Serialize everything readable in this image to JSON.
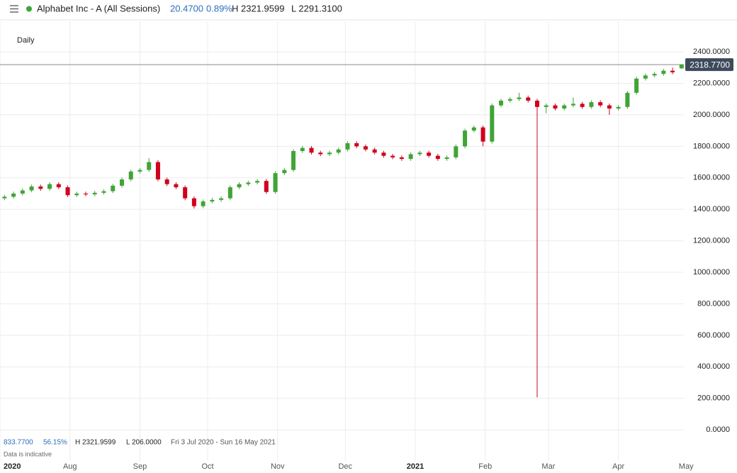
{
  "header": {
    "title": "Alphabet Inc - A (All Sessions)",
    "change": "20.4700",
    "change_pct": "0.89%",
    "high": "H 2321.9599",
    "low": "L 2291.3100",
    "interval": "Daily"
  },
  "footer": {
    "range_change": "833.7700",
    "range_pct": "56.15%",
    "range_high": "H 2321.9599",
    "range_low": "L 206.0000",
    "dates": "Fri 3 Jul 2020 - Sun 16 May 2021",
    "note": "Data is indicative"
  },
  "chart_data": {
    "type": "candlestick",
    "up_color": "#3fa535",
    "down_color": "#d0021b",
    "grid": true,
    "xlim": [
      0,
      303
    ],
    "ylim": [
      -40,
      2594
    ],
    "xticks": [
      {
        "value": 0,
        "label": "2020"
      },
      {
        "value": 31,
        "label": "Aug"
      },
      {
        "value": 62,
        "label": "Sep"
      },
      {
        "value": 92,
        "label": "Oct"
      },
      {
        "value": 123,
        "label": "Nov"
      },
      {
        "value": 153,
        "label": "Dec"
      },
      {
        "value": 184,
        "label": "2021"
      },
      {
        "value": 215,
        "label": "Feb"
      },
      {
        "value": 243,
        "label": "Mar"
      },
      {
        "value": 274,
        "label": "Apr"
      },
      {
        "value": 304,
        "label": "May"
      }
    ],
    "yticks": [
      {
        "value": 0,
        "label": "0.0000"
      },
      {
        "value": 200,
        "label": "200.0000"
      },
      {
        "value": 400,
        "label": "400.0000"
      },
      {
        "value": 600,
        "label": "600.0000"
      },
      {
        "value": 800,
        "label": "800.0000"
      },
      {
        "value": 1000,
        "label": "1000.0000"
      },
      {
        "value": 1200,
        "label": "1200.0000"
      },
      {
        "value": 1400,
        "label": "1400.0000"
      },
      {
        "value": 1600,
        "label": "1600.0000"
      },
      {
        "value": 1800,
        "label": "1800.0000"
      },
      {
        "value": 2000,
        "label": "2000.0000"
      },
      {
        "value": 2200,
        "label": "2200.0000"
      },
      {
        "value": 2400,
        "label": "2400.0000"
      }
    ],
    "last_price": {
      "value": 2318.77,
      "label": "2318.7700"
    },
    "x": [
      2,
      6,
      10,
      14,
      18,
      22,
      26,
      30,
      34,
      38,
      42,
      46,
      50,
      54,
      58,
      62,
      66,
      70,
      74,
      78,
      82,
      86,
      90,
      94,
      98,
      102,
      106,
      110,
      114,
      118,
      122,
      126,
      130,
      134,
      138,
      142,
      146,
      150,
      154,
      158,
      162,
      166,
      170,
      174,
      178,
      182,
      186,
      190,
      194,
      198,
      202,
      206,
      210,
      214,
      218,
      222,
      226,
      230,
      234,
      238,
      242,
      246,
      250,
      254,
      258,
      262,
      266,
      270,
      274,
      278,
      282,
      286,
      290,
      294,
      298,
      302
    ],
    "open": [
      1470,
      1480,
      1500,
      1520,
      1545,
      1530,
      1560,
      1540,
      1490,
      1500,
      1495,
      1505,
      1515,
      1550,
      1590,
      1640,
      1650,
      1700,
      1590,
      1560,
      1540,
      1470,
      1420,
      1450,
      1460,
      1470,
      1540,
      1560,
      1570,
      1580,
      1510,
      1630,
      1650,
      1770,
      1790,
      1760,
      1750,
      1760,
      1780,
      1820,
      1800,
      1780,
      1760,
      1740,
      1730,
      1720,
      1750,
      1760,
      1740,
      1720,
      1730,
      1800,
      1900,
      1920,
      1830,
      2060,
      2090,
      2100,
      2110,
      2090,
      2050,
      2060,
      2040,
      2060,
      2070,
      2050,
      2080,
      2060,
      2040,
      2050,
      2140,
      2230,
      2250,
      2260,
      2280,
      2295
    ],
    "high": [
      1492,
      1512,
      1532,
      1557,
      1557,
      1572,
      1572,
      1552,
      1512,
      1512,
      1517,
      1527,
      1562,
      1602,
      1652,
      1662,
      1725,
      1712,
      1602,
      1572,
      1552,
      1482,
      1462,
      1472,
      1482,
      1552,
      1572,
      1582,
      1592,
      1592,
      1642,
      1662,
      1782,
      1802,
      1802,
      1772,
      1772,
      1792,
      1832,
      1832,
      1812,
      1792,
      1772,
      1752,
      1742,
      1762,
      1772,
      1772,
      1752,
      1742,
      1812,
      1912,
      1932,
      1932,
      2072,
      2102,
      2112,
      2140,
      2122,
      2102,
      2072,
      2072,
      2072,
      2110,
      2082,
      2092,
      2092,
      2072,
      2062,
      2152,
      2242,
      2262,
      2272,
      2292,
      2300,
      2321.9599
    ],
    "low": [
      1458,
      1468,
      1488,
      1508,
      1518,
      1518,
      1528,
      1478,
      1478,
      1483,
      1483,
      1493,
      1503,
      1538,
      1578,
      1628,
      1638,
      1578,
      1548,
      1528,
      1458,
      1405,
      1408,
      1438,
      1448,
      1458,
      1528,
      1548,
      1558,
      1498,
      1498,
      1618,
      1638,
      1758,
      1748,
      1738,
      1738,
      1748,
      1768,
      1788,
      1768,
      1748,
      1728,
      1718,
      1708,
      1708,
      1738,
      1728,
      1708,
      1708,
      1718,
      1788,
      1888,
      1800,
      1818,
      2048,
      2078,
      2088,
      2078,
      206,
      2010,
      2028,
      2028,
      2048,
      2038,
      2038,
      2048,
      2000,
      2028,
      2038,
      2128,
      2218,
      2238,
      2248,
      2258,
      2291.31
    ],
    "close": [
      1480,
      1500,
      1520,
      1545,
      1530,
      1560,
      1540,
      1490,
      1500,
      1495,
      1505,
      1515,
      1550,
      1590,
      1640,
      1650,
      1700,
      1590,
      1560,
      1540,
      1470,
      1420,
      1450,
      1460,
      1470,
      1540,
      1560,
      1570,
      1580,
      1510,
      1630,
      1650,
      1770,
      1790,
      1760,
      1750,
      1760,
      1780,
      1820,
      1800,
      1780,
      1760,
      1740,
      1730,
      1720,
      1750,
      1760,
      1740,
      1720,
      1730,
      1800,
      1900,
      1920,
      1830,
      2060,
      2090,
      2100,
      2110,
      2090,
      2050,
      2060,
      2040,
      2060,
      2070,
      2050,
      2080,
      2060,
      2040,
      2050,
      2140,
      2230,
      2250,
      2260,
      2280,
      2270,
      2318.77
    ]
  }
}
